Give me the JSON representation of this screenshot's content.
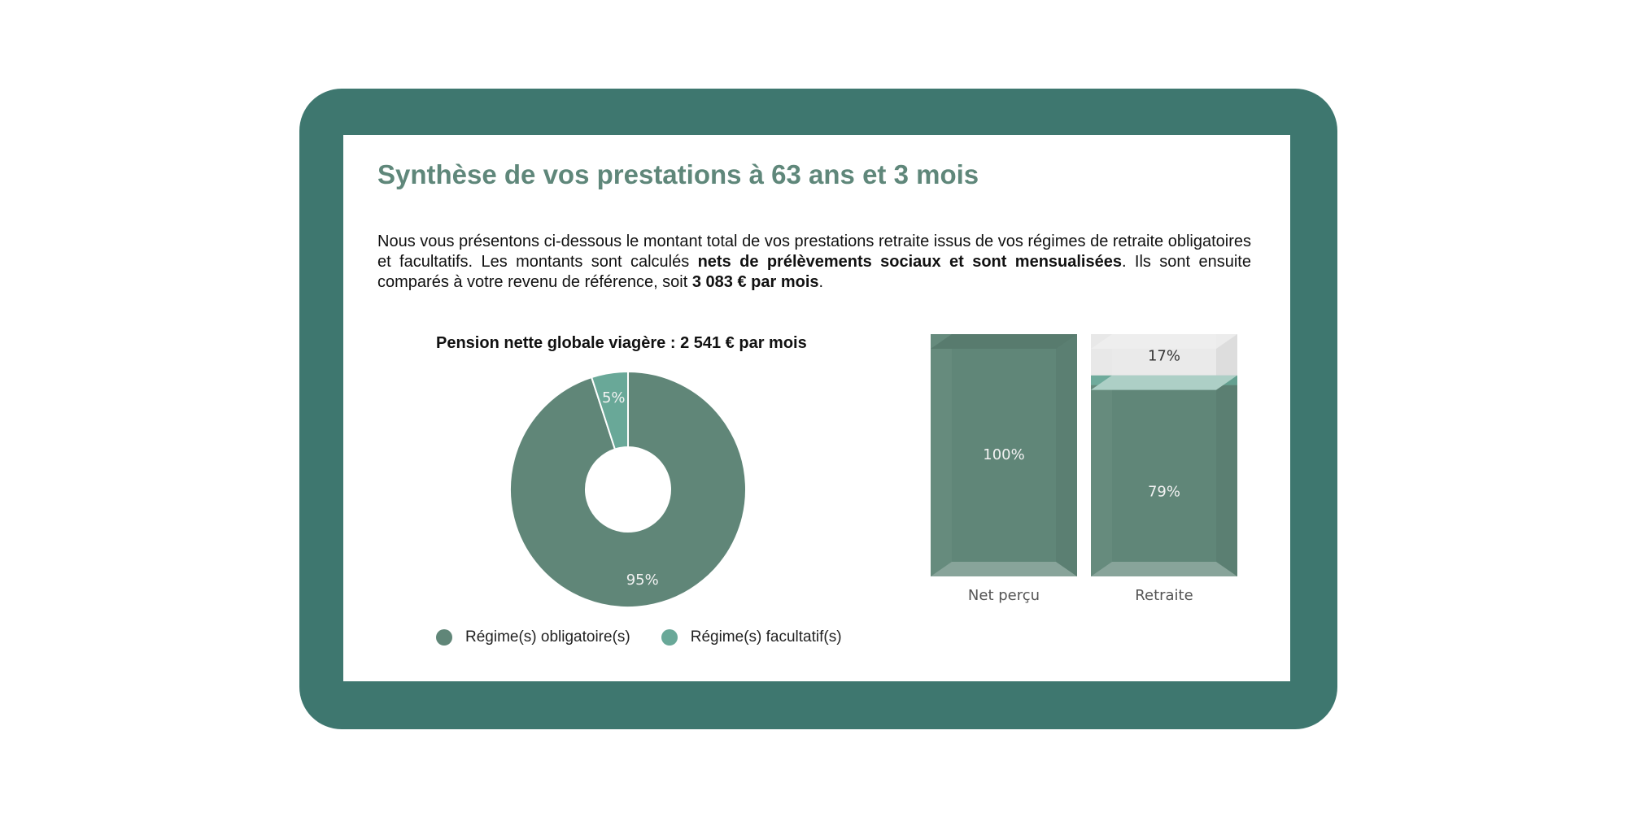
{
  "title": "Synthèse de vos prestations à 63 ans et 3 mois",
  "intro": {
    "part1": "Nous vous présentons ci-dessous le montant total de vos prestations retraite issus de vos régimes de retraite obligatoires et facultatifs. Les montants sont calculés ",
    "bold1": "nets de prélèvements sociaux et sont mensualisées",
    "part2": ". Ils sont ensuite comparés à votre revenu de référence, soit ",
    "bold2": "3 083 € par mois",
    "part3": "."
  },
  "colors": {
    "frame": "#3e776f",
    "title": "#5f877a",
    "obligatoire": "#608678",
    "facultatif": "#69a898",
    "remaining": "#e6e6e6"
  },
  "chart_data": [
    {
      "type": "pie",
      "subtype": "donut",
      "title": "Pension nette globale viagère : 2 541 € par mois",
      "slices": [
        {
          "label": "Régime(s) obligatoire(s)",
          "value": 95,
          "display": "95%"
        },
        {
          "label": "Régime(s) facultatif(s)",
          "value": 5,
          "display": "5%"
        }
      ],
      "legend": "bottom"
    },
    {
      "type": "bar",
      "subtype": "stacked-3d",
      "categories": [
        "Net perçu",
        "Retraite"
      ],
      "ylim": [
        0,
        100
      ],
      "bars": [
        {
          "category": "Net perçu",
          "segments": [
            {
              "kind": "obligatoire",
              "value": 100,
              "display": "100%"
            }
          ]
        },
        {
          "category": "Retraite",
          "segments": [
            {
              "kind": "obligatoire",
              "value": 79,
              "display": "79%"
            },
            {
              "kind": "facultatif",
              "value": 4,
              "display": ""
            },
            {
              "kind": "remaining",
              "value": 17,
              "display": "17%"
            }
          ]
        }
      ]
    }
  ]
}
